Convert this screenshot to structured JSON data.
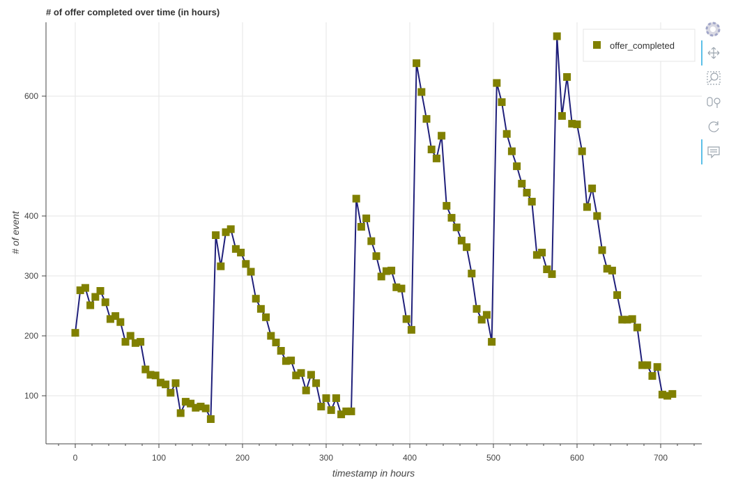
{
  "chart_data": {
    "type": "line",
    "title": "# of offer completed over time (in hours)",
    "xlabel": "timestamp in hours",
    "ylabel": "# of event",
    "xlim": [
      -35,
      750
    ],
    "ylim": [
      20,
      720
    ],
    "x_ticks": [
      0,
      100,
      200,
      300,
      400,
      500,
      600,
      700
    ],
    "y_ticks": [
      100,
      200,
      300,
      400,
      600
    ],
    "grid": true,
    "legend_position": "top-right",
    "line_color": "#1f1f7a",
    "marker_color": "#808000",
    "series": [
      {
        "name": "offer_completed",
        "x": [
          0,
          6,
          12,
          18,
          24,
          30,
          36,
          42,
          48,
          54,
          60,
          66,
          72,
          78,
          84,
          90,
          96,
          102,
          108,
          114,
          120,
          126,
          132,
          138,
          144,
          150,
          156,
          162,
          168,
          174,
          180,
          186,
          192,
          198,
          204,
          210,
          216,
          222,
          228,
          234,
          240,
          246,
          252,
          258,
          264,
          270,
          276,
          282,
          288,
          294,
          300,
          306,
          312,
          318,
          324,
          330,
          336,
          342,
          348,
          354,
          360,
          366,
          372,
          378,
          384,
          390,
          396,
          402,
          408,
          414,
          420,
          426,
          432,
          438,
          444,
          450,
          456,
          462,
          468,
          474,
          480,
          486,
          492,
          498,
          504,
          510,
          516,
          522,
          528,
          534,
          540,
          546,
          552,
          558,
          564,
          570,
          576,
          582,
          588,
          594,
          600,
          606,
          612,
          618,
          624,
          630,
          636,
          642,
          648,
          654,
          660,
          666,
          672,
          678,
          684,
          690,
          696,
          702,
          708,
          714
        ],
        "values": [
          205,
          276,
          280,
          251,
          265,
          275,
          256,
          228,
          233,
          223,
          190,
          200,
          188,
          190,
          144,
          135,
          134,
          122,
          119,
          105,
          121,
          71,
          90,
          87,
          80,
          82,
          79,
          61,
          368,
          316,
          373,
          378,
          345,
          339,
          320,
          307,
          262,
          245,
          231,
          200,
          189,
          175,
          158,
          159,
          134,
          138,
          109,
          135,
          121,
          82,
          96,
          76,
          96,
          69,
          74,
          74,
          429,
          382,
          396,
          358,
          333,
          299,
          308,
          309,
          281,
          279,
          228,
          210,
          655,
          607,
          562,
          511,
          496,
          534,
          417,
          397,
          381,
          359,
          348,
          304,
          245,
          227,
          235,
          190,
          622,
          590,
          537,
          508,
          483,
          454,
          439,
          424,
          335,
          339,
          311,
          303,
          700,
          567,
          632,
          554,
          553,
          508,
          415,
          446,
          400,
          343,
          312,
          309,
          268,
          227,
          227,
          228,
          214,
          151,
          151,
          133,
          148,
          102,
          100,
          103
        ]
      }
    ]
  },
  "toolbar": {
    "tools": [
      "bokeh-logo-icon",
      "pan-icon",
      "box-zoom-icon",
      "wheel-zoom-icon",
      "reset-icon",
      "hover-icon"
    ]
  }
}
